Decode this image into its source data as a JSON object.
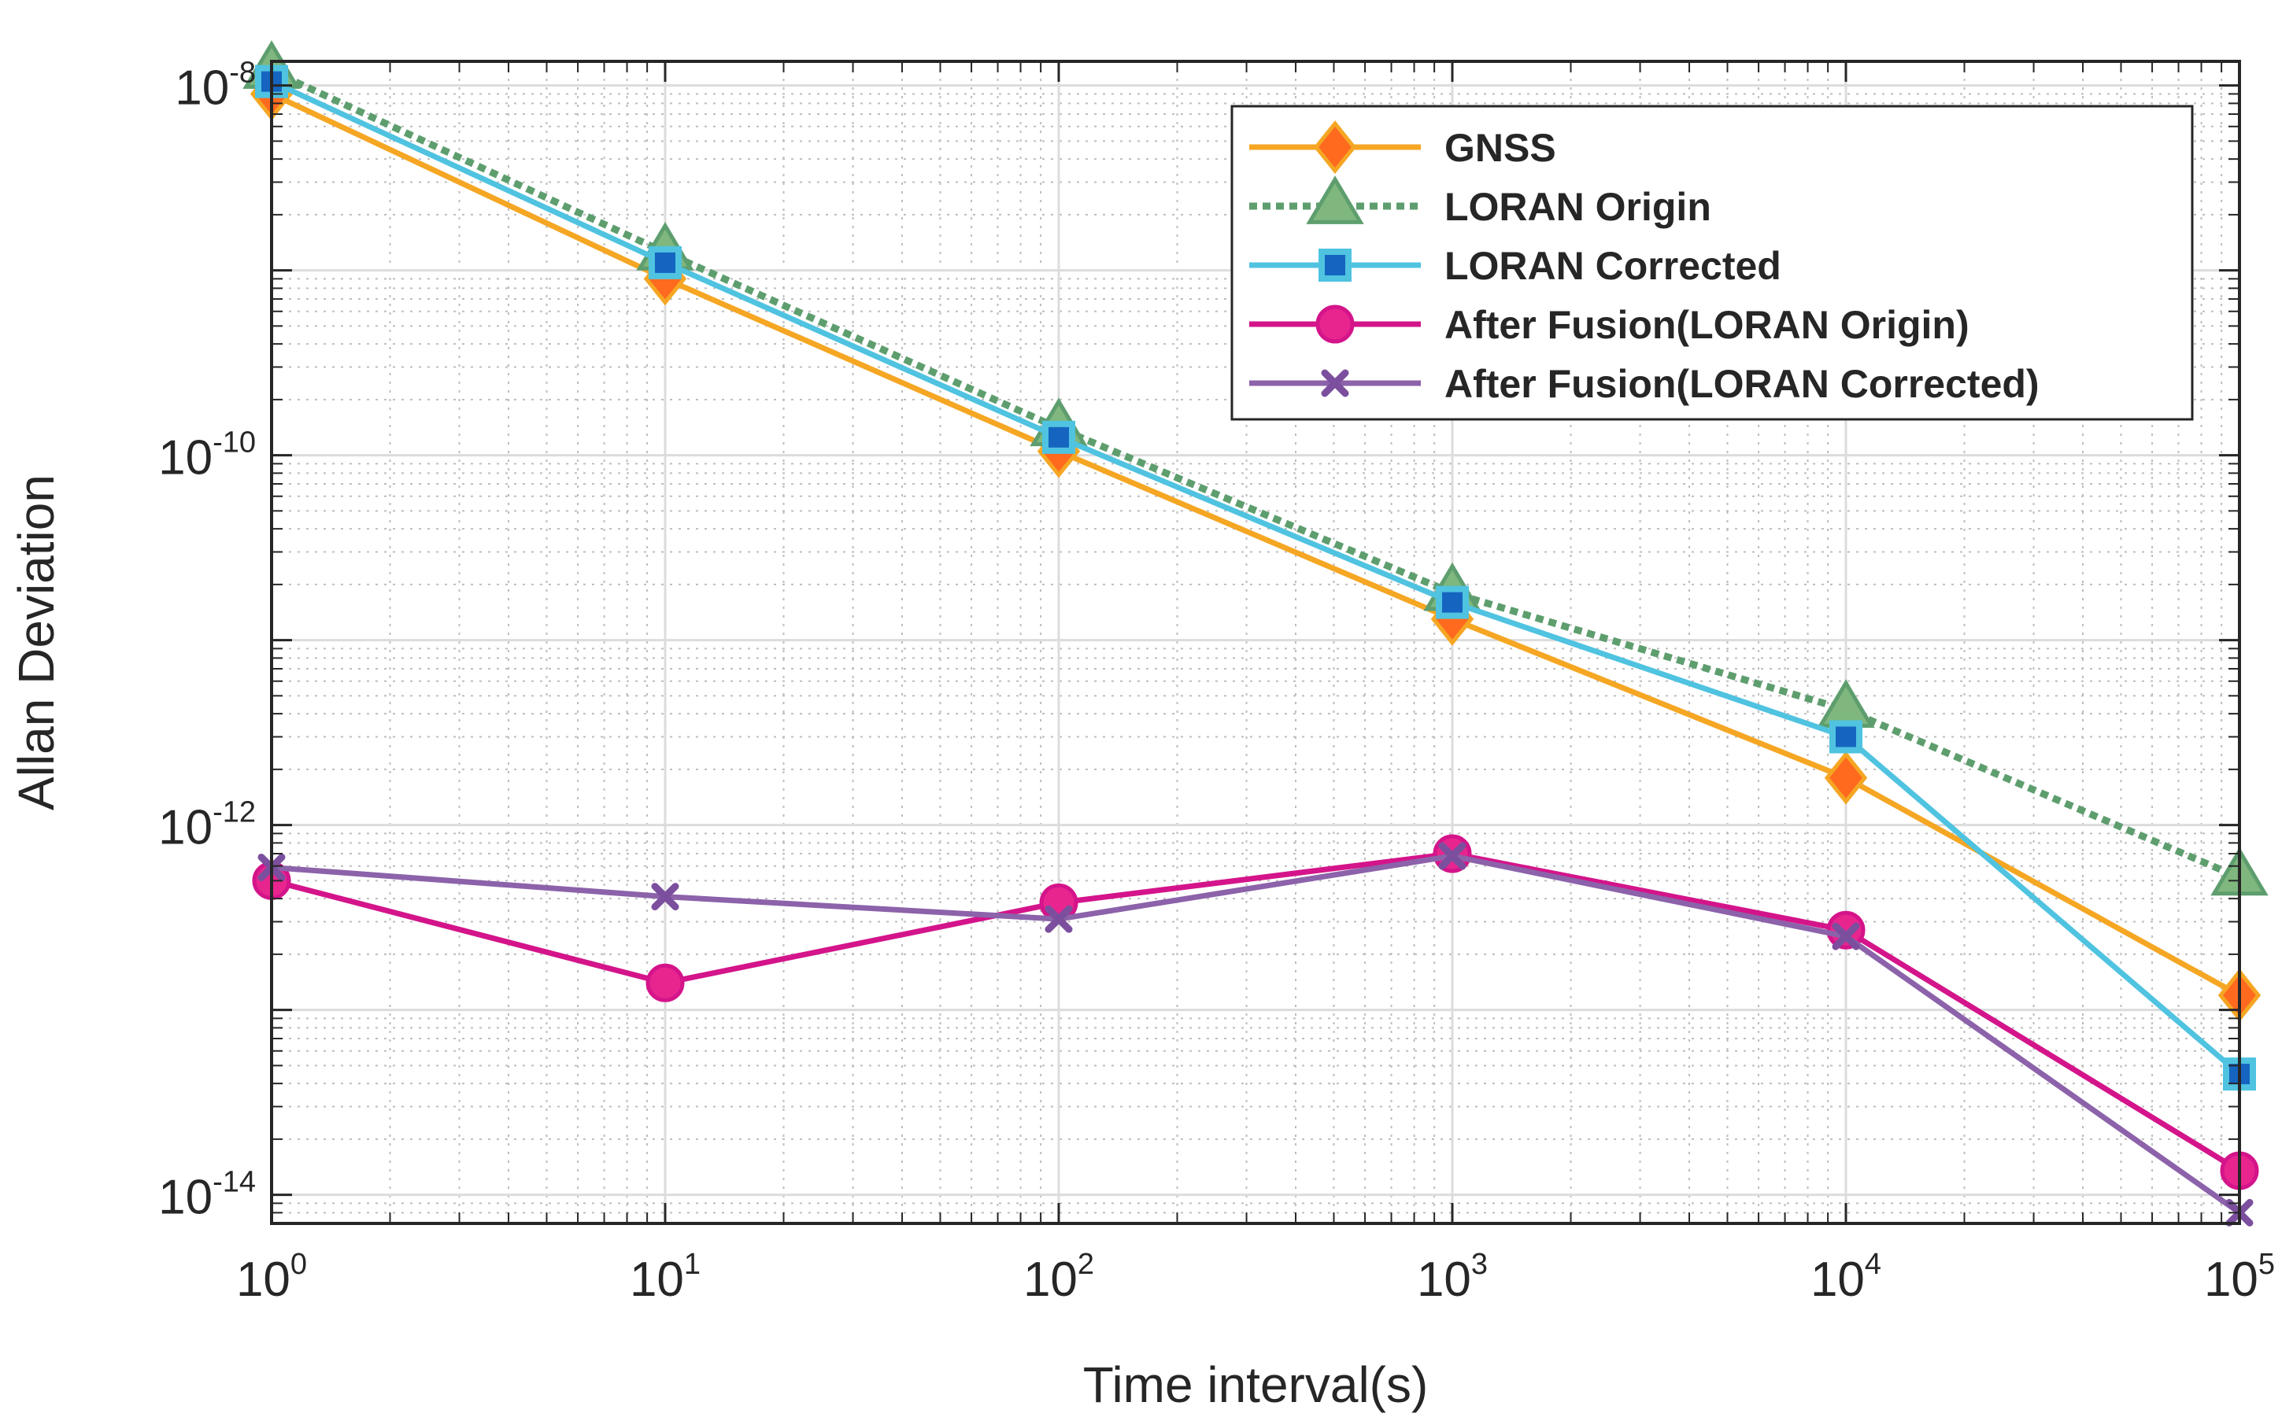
{
  "chart_data": {
    "type": "line",
    "title": "",
    "xlabel": "Time interval(s)",
    "ylabel": "Allan Deviation",
    "xscale": "log",
    "yscale": "log",
    "xlim": [
      1,
      100000
    ],
    "ylim": [
      7e-15,
      1.35e-08
    ],
    "grid": true,
    "legend_position": "top-right",
    "x_ticks": [
      {
        "value": 1,
        "base": "10",
        "exp": "0"
      },
      {
        "value": 10,
        "base": "10",
        "exp": "1"
      },
      {
        "value": 100,
        "base": "10",
        "exp": "2"
      },
      {
        "value": 1000,
        "base": "10",
        "exp": "3"
      },
      {
        "value": 10000,
        "base": "10",
        "exp": "4"
      },
      {
        "value": 100000,
        "base": "10",
        "exp": "5"
      }
    ],
    "y_ticks": [
      {
        "value": 1e-14,
        "base": "10",
        "exp": "-14"
      },
      {
        "value": 1e-12,
        "base": "10",
        "exp": "-12"
      },
      {
        "value": 1e-10,
        "base": "10",
        "exp": "-10"
      },
      {
        "value": 1e-08,
        "base": "10",
        "exp": "-8"
      }
    ],
    "x": [
      1,
      10,
      100,
      1000,
      10000,
      100000
    ],
    "series": [
      {
        "name": "GNSS",
        "color": "#F5A623",
        "marker": "diamond",
        "marker_face": "#FF6A1F",
        "style": "solid",
        "values": [
          9e-09,
          9e-10,
          1.05e-10,
          1.3e-11,
          1.8e-12,
          1.2e-13
        ]
      },
      {
        "name": "LORAN Origin",
        "color": "#5E9E6E",
        "marker": "triangle",
        "marker_face": "#7FB77E",
        "style": "dotted",
        "values": [
          1.2e-08,
          1.25e-09,
          1.4e-10,
          1.8e-11,
          4.2e-12,
          5.2e-13
        ]
      },
      {
        "name": "LORAN Corrected",
        "color": "#4FC3E0",
        "marker": "square",
        "marker_face": "#1565C0",
        "style": "solid",
        "values": [
          1.05e-08,
          1.1e-09,
          1.25e-10,
          1.6e-11,
          3e-12,
          4.5e-14
        ]
      },
      {
        "name": "After Fusion(LORAN Origin)",
        "color": "#D4148A",
        "marker": "circle",
        "marker_face": "#E8258F",
        "style": "solid",
        "values": [
          5e-13,
          1.4e-13,
          3.8e-13,
          7e-13,
          2.7e-13,
          1.35e-14
        ]
      },
      {
        "name": "After Fusion(LORAN Corrected)",
        "color": "#8C62AA",
        "marker": "x",
        "marker_face": "#7B4F9E",
        "style": "solid",
        "values": [
          5.9e-13,
          4.1e-13,
          3.1e-13,
          6.8e-13,
          2.5e-13,
          8e-15
        ]
      }
    ]
  }
}
